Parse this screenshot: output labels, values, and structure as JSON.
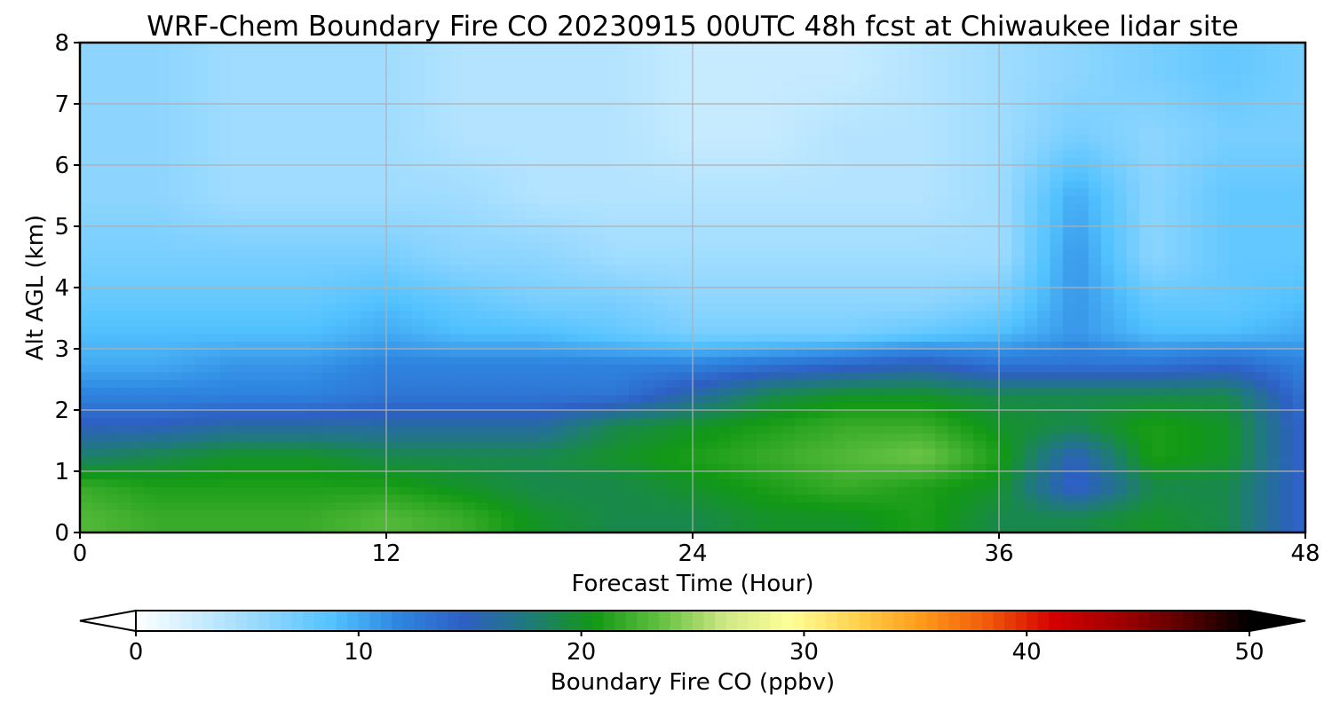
{
  "chart_data": {
    "type": "heatmap",
    "title": "WRF-Chem Boundary Fire CO  20230915 00UTC 48h fcst at Chiwaukee lidar site",
    "xlabel": "Forecast Time (Hour)",
    "ylabel": "Alt AGL (km)",
    "xlim": [
      0,
      48
    ],
    "ylim": [
      0,
      8
    ],
    "x_ticks": [
      0,
      12,
      24,
      36,
      48
    ],
    "y_ticks": [
      0,
      1,
      2,
      3,
      4,
      5,
      6,
      7,
      8
    ],
    "grid": true,
    "x": [
      0,
      3,
      6,
      9,
      12,
      15,
      18,
      21,
      24,
      27,
      30,
      33,
      36,
      39,
      42,
      45,
      48
    ],
    "y": [
      0.25,
      0.75,
      1.25,
      1.75,
      2.25,
      2.75,
      3.25,
      3.75,
      4.5,
      5.5,
      6.5,
      7.5
    ],
    "z": [
      [
        23,
        22,
        22,
        22,
        23,
        22,
        20,
        19,
        19,
        20,
        20,
        21,
        19,
        19,
        20,
        19,
        14
      ],
      [
        22,
        21,
        21,
        21,
        21,
        20,
        19,
        19,
        20,
        21,
        22,
        21,
        20,
        14,
        19,
        19,
        14
      ],
      [
        18,
        19,
        20,
        20,
        19,
        19,
        19,
        20,
        21,
        22,
        23,
        24,
        21,
        15,
        21,
        20,
        14
      ],
      [
        15,
        15,
        16,
        16,
        16,
        16,
        16,
        19,
        20,
        21,
        22,
        22,
        20,
        19,
        21,
        20,
        14
      ],
      [
        12,
        12,
        12,
        12,
        13,
        13,
        13,
        13,
        16,
        19,
        20,
        20,
        19,
        19,
        19,
        19,
        13
      ],
      [
        10,
        10,
        11,
        11,
        12,
        12,
        12,
        12,
        12,
        13,
        14,
        15,
        13,
        13,
        13,
        14,
        12
      ],
      [
        9,
        9,
        9,
        9,
        10,
        9,
        9,
        8,
        7,
        7,
        7,
        8,
        9,
        11,
        9,
        9,
        10
      ],
      [
        8,
        8,
        8,
        8,
        9,
        8,
        7,
        7,
        6,
        6,
        6,
        6,
        7,
        11,
        8,
        8,
        9
      ],
      [
        7,
        7,
        7,
        7,
        7,
        6,
        6,
        5,
        5,
        5,
        5,
        5,
        5,
        11,
        6,
        8,
        8
      ],
      [
        6,
        6,
        5,
        5,
        5,
        5,
        4,
        4,
        4,
        4,
        4,
        4,
        5,
        10,
        6,
        8,
        8
      ],
      [
        6,
        6,
        5,
        5,
        5,
        4,
        4,
        4,
        3,
        3,
        4,
        4,
        5,
        7,
        6,
        7,
        7
      ],
      [
        6,
        6,
        5,
        5,
        5,
        4,
        4,
        4,
        3,
        3,
        3,
        4,
        5,
        6,
        7,
        8,
        7
      ]
    ],
    "colorbar": {
      "label": "Boundary Fire CO  (ppbv)",
      "min": 0,
      "max": 50,
      "ticks": [
        0,
        10,
        20,
        30,
        40,
        50
      ],
      "extend": "both",
      "orientation": "horizontal",
      "colors": [
        "#ffffff",
        "#c7ebff",
        "#8fd6ff",
        "#52c2ff",
        "#2e86e0",
        "#2e5fc4",
        "#1f7a7a",
        "#129915",
        "#62c040",
        "#cfe885",
        "#ffff99",
        "#ffd24d",
        "#ff9a19",
        "#f05a0a",
        "#d50000",
        "#a10000",
        "#5a0000",
        "#000000"
      ]
    }
  }
}
